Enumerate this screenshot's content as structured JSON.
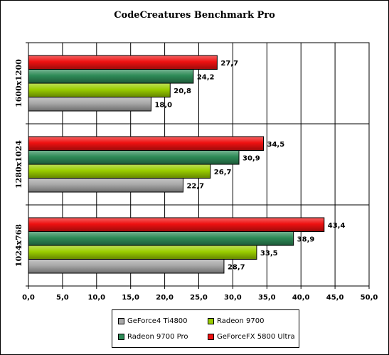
{
  "chart_data": {
    "type": "bar",
    "orientation": "horizontal",
    "title": "CodeCreatures Benchmark Pro",
    "categories": [
      "1600x1200",
      "1280x1024",
      "1024x768"
    ],
    "series": [
      {
        "name": "GeForce4 Ti4800",
        "color": "#a8a8a8",
        "values": [
          18.0,
          22.7,
          28.7
        ],
        "labels": [
          "18,0",
          "22,7",
          "28,7"
        ]
      },
      {
        "name": "Radeon 9700",
        "color": "#9acd00",
        "values": [
          20.8,
          26.7,
          33.5
        ],
        "labels": [
          "20,8",
          "26,7",
          "33,5"
        ]
      },
      {
        "name": "Radeon 9700 Pro",
        "color": "#2e8b57",
        "values": [
          24.2,
          30.9,
          38.9
        ],
        "labels": [
          "24,2",
          "30,9",
          "38,9"
        ]
      },
      {
        "name": "GeForceFX 5800 Ultra",
        "color": "#ee1111",
        "values": [
          27.7,
          34.5,
          43.4
        ],
        "labels": [
          "27,7",
          "34,5",
          "43,4"
        ]
      }
    ],
    "xlim": [
      0,
      50
    ],
    "xticks": [
      0,
      5,
      10,
      15,
      20,
      25,
      30,
      35,
      40,
      45,
      50
    ],
    "xtick_labels": [
      "0,0",
      "5,0",
      "10,0",
      "15,0",
      "20,0",
      "25,0",
      "30,0",
      "35,0",
      "40,0",
      "45,0",
      "50,0"
    ],
    "grid": "vertical",
    "legend_position": "bottom",
    "legend_order": [
      0,
      1,
      2,
      3
    ]
  }
}
